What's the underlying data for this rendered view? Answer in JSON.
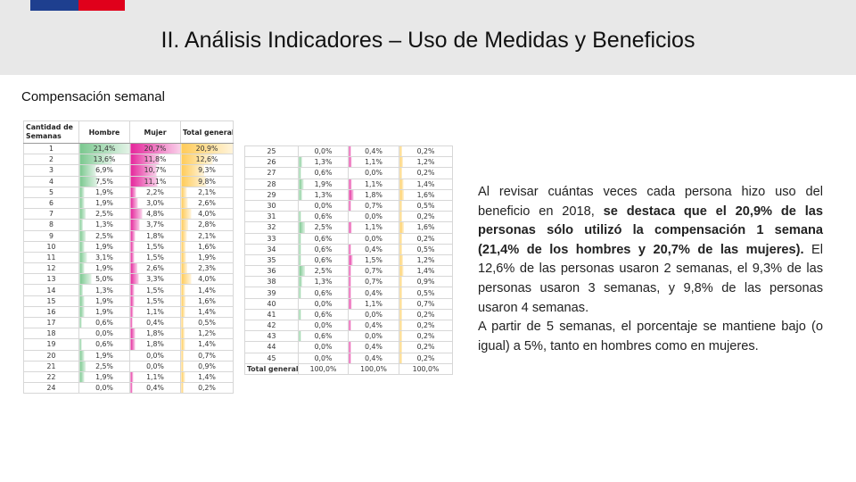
{
  "header": {
    "title": "II. Análisis Indicadores – Uso de Medidas y Beneficios"
  },
  "section": {
    "subtitle": "Compensación semanal"
  },
  "table": {
    "headers": [
      "Cantidad de Semanas",
      "Hombre",
      "Mujer",
      "Total general"
    ],
    "left_rows": [
      [
        "1",
        "21,4%",
        "20,7%",
        "20,9%"
      ],
      [
        "2",
        "13,6%",
        "11,8%",
        "12,6%"
      ],
      [
        "3",
        "6,9%",
        "10,7%",
        "9,3%"
      ],
      [
        "4",
        "7,5%",
        "11,1%",
        "9,8%"
      ],
      [
        "5",
        "1,9%",
        "2,2%",
        "2,1%"
      ],
      [
        "6",
        "1,9%",
        "3,0%",
        "2,6%"
      ],
      [
        "7",
        "2,5%",
        "4,8%",
        "4,0%"
      ],
      [
        "8",
        "1,3%",
        "3,7%",
        "2,8%"
      ],
      [
        "9",
        "2,5%",
        "1,8%",
        "2,1%"
      ],
      [
        "10",
        "1,9%",
        "1,5%",
        "1,6%"
      ],
      [
        "11",
        "3,1%",
        "1,5%",
        "1,9%"
      ],
      [
        "12",
        "1,9%",
        "2,6%",
        "2,3%"
      ],
      [
        "13",
        "5,0%",
        "3,3%",
        "4,0%"
      ],
      [
        "14",
        "1,3%",
        "1,5%",
        "1,4%"
      ],
      [
        "15",
        "1,9%",
        "1,5%",
        "1,6%"
      ],
      [
        "16",
        "1,9%",
        "1,1%",
        "1,4%"
      ],
      [
        "17",
        "0,6%",
        "0,4%",
        "0,5%"
      ],
      [
        "18",
        "0,0%",
        "1,8%",
        "1,2%"
      ],
      [
        "19",
        "0,6%",
        "1,8%",
        "1,4%"
      ],
      [
        "20",
        "1,9%",
        "0,0%",
        "0,7%"
      ],
      [
        "21",
        "2,5%",
        "0,0%",
        "0,9%"
      ],
      [
        "22",
        "1,9%",
        "1,1%",
        "1,4%"
      ],
      [
        "24",
        "0,0%",
        "0,4%",
        "0,2%"
      ]
    ],
    "right_rows": [
      [
        "25",
        "0,0%",
        "0,4%",
        "0,2%"
      ],
      [
        "26",
        "1,3%",
        "1,1%",
        "1,2%"
      ],
      [
        "27",
        "0,6%",
        "0,0%",
        "0,2%"
      ],
      [
        "28",
        "1,9%",
        "1,1%",
        "1,4%"
      ],
      [
        "29",
        "1,3%",
        "1,8%",
        "1,6%"
      ],
      [
        "30",
        "0,0%",
        "0,7%",
        "0,5%"
      ],
      [
        "31",
        "0,6%",
        "0,0%",
        "0,2%"
      ],
      [
        "32",
        "2,5%",
        "1,1%",
        "1,6%"
      ],
      [
        "33",
        "0,6%",
        "0,0%",
        "0,2%"
      ],
      [
        "34",
        "0,6%",
        "0,4%",
        "0,5%"
      ],
      [
        "35",
        "0,6%",
        "1,5%",
        "1,2%"
      ],
      [
        "36",
        "2,5%",
        "0,7%",
        "1,4%"
      ],
      [
        "38",
        "1,3%",
        "0,7%",
        "0,9%"
      ],
      [
        "39",
        "0,6%",
        "0,4%",
        "0,5%"
      ],
      [
        "40",
        "0,0%",
        "1,1%",
        "0,7%"
      ],
      [
        "41",
        "0,6%",
        "0,0%",
        "0,2%"
      ],
      [
        "42",
        "0,0%",
        "0,4%",
        "0,2%"
      ],
      [
        "43",
        "0,6%",
        "0,0%",
        "0,2%"
      ],
      [
        "44",
        "0,0%",
        "0,4%",
        "0,2%"
      ],
      [
        "45",
        "0,0%",
        "0,4%",
        "0,2%"
      ]
    ],
    "total_row": [
      "Total general",
      "100,0%",
      "100,0%",
      "100,0%"
    ],
    "colors": {
      "hombre": "#63be7b",
      "mujer": "#e0008a",
      "total": "#ffc23b"
    }
  },
  "body": {
    "paragraph1_part1": "Al revisar cuántas veces cada persona hizo uso del beneficio en 2018, ",
    "paragraph1_bold": "se destaca que el 20,9% de las personas sólo utilizó la compensación 1 semana (21,4% de los hombres y 20,7% de las mujeres).",
    "paragraph1_part2": " El 12,6% de las personas usaron 2 semanas, el 9,3% de las personas usaron 3 semanas, y 9,8% de las personas usaron 4 semanas.",
    "paragraph2": "A partir de 5 semanas, el porcentaje se mantiene bajo (o igual) a 5%, tanto en hombres como en mujeres."
  }
}
